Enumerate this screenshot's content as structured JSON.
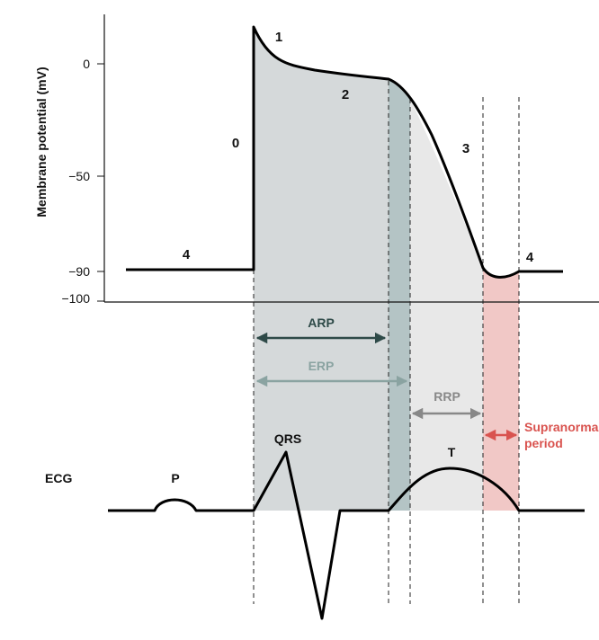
{
  "y_axis": {
    "label": "Membrane potential (mV)",
    "ticks": [
      "0",
      "−50",
      "−90",
      "−100"
    ]
  },
  "phases": [
    "0",
    "1",
    "2",
    "3",
    "4",
    "4"
  ],
  "periods": {
    "arp": "ARP",
    "erp": "ERP",
    "rrp": "RRP",
    "supranormal_line1": "Supranormal",
    "supranormal_line2": "period"
  },
  "ecg": {
    "label": "ECG",
    "p": "P",
    "qrs": "QRS",
    "t": "T"
  },
  "colors": {
    "arp_region": "#d5d9da",
    "erp_region": "#b4c4c5",
    "rrp_region": "#e8e8e8",
    "supranormal_region": "#f1c8c6",
    "arp_arrow": "#2e4a48",
    "erp_arrow": "#8aa3a1",
    "rrp_arrow": "#888888",
    "supranormal_arrow": "#d9534f"
  }
}
